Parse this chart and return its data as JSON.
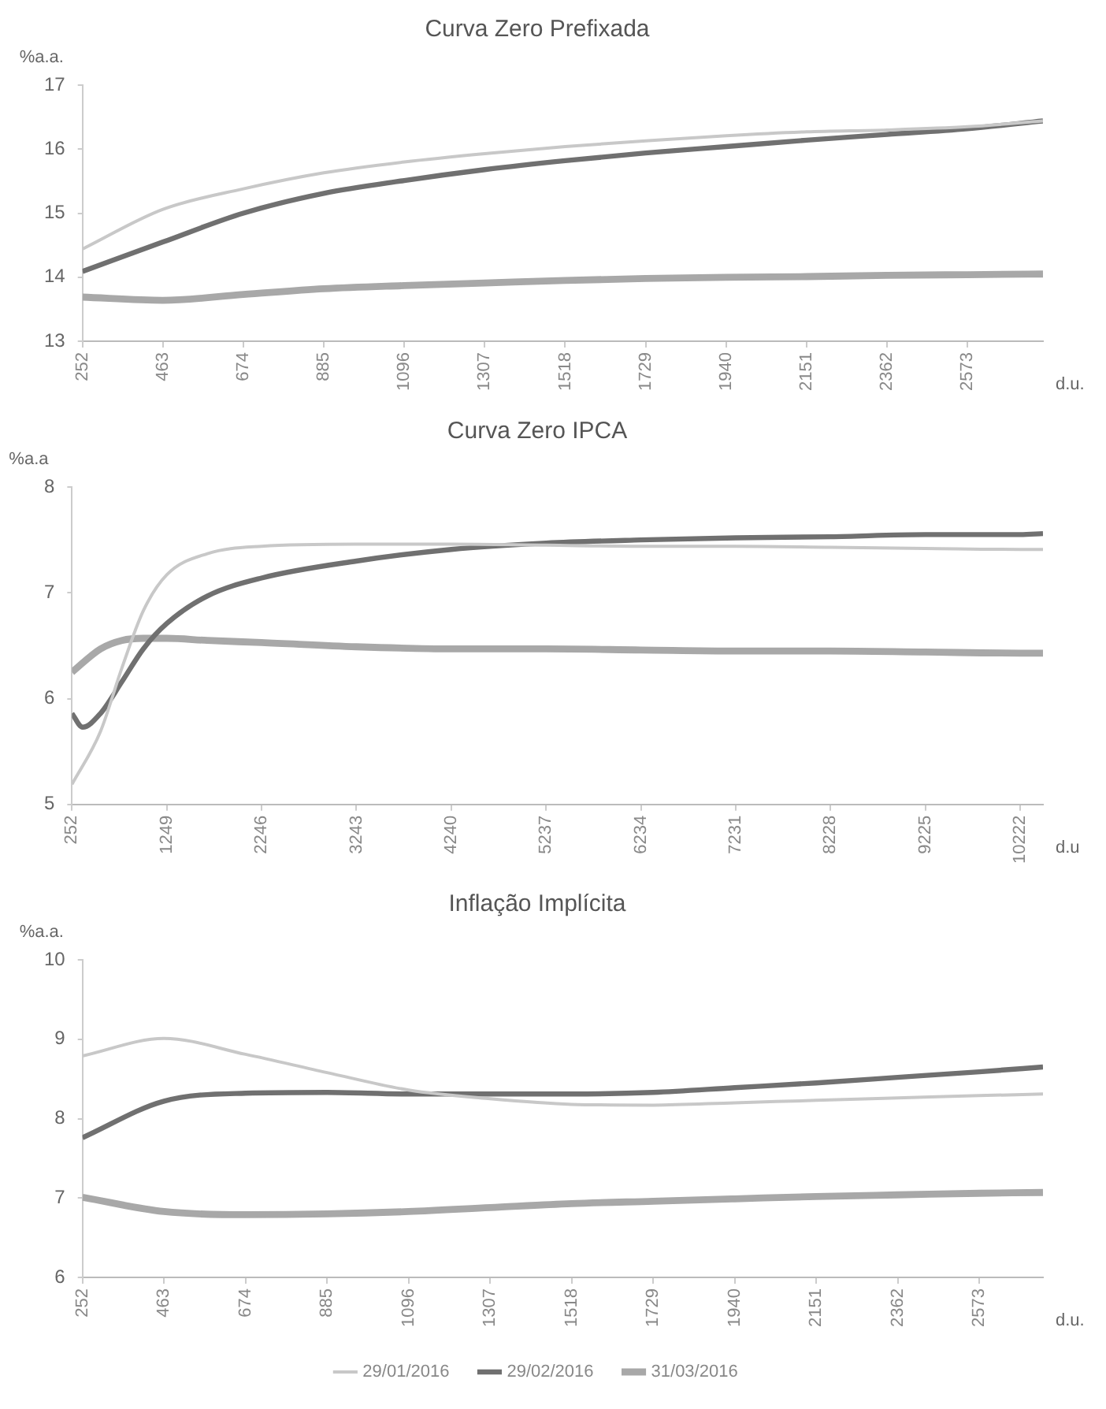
{
  "chart_data": [
    {
      "type": "line",
      "title": "Curva Zero Prefixada",
      "ylabel": "%a.a.",
      "xlabel": "d.u.",
      "xlim": [
        252,
        2771
      ],
      "xticks": [
        252,
        463,
        674,
        885,
        1096,
        1307,
        1518,
        1729,
        1940,
        2151,
        2362,
        2573
      ],
      "ylim": [
        13,
        17
      ],
      "yticks": [
        13,
        14,
        15,
        16,
        17
      ],
      "grid": false,
      "legend": false,
      "series": [
        {
          "color": "#c8c8c8",
          "x": [
            252,
            463,
            674,
            885,
            1096,
            1307,
            1518,
            1729,
            1940,
            2151,
            2362,
            2573,
            2771
          ],
          "values": [
            14.44,
            15.06,
            15.38,
            15.63,
            15.8,
            15.93,
            16.04,
            16.13,
            16.21,
            16.27,
            16.3,
            16.35,
            16.44
          ]
        },
        {
          "color": "#707070",
          "x": [
            252,
            463,
            674,
            885,
            1096,
            1307,
            1518,
            1729,
            1940,
            2151,
            2362,
            2573,
            2771
          ],
          "values": [
            14.09,
            14.55,
            15.0,
            15.31,
            15.51,
            15.68,
            15.82,
            15.94,
            16.04,
            16.14,
            16.23,
            16.32,
            16.44
          ]
        },
        {
          "color": "#a8a8a8",
          "x": [
            252,
            463,
            674,
            885,
            1096,
            1307,
            1518,
            1729,
            1940,
            2151,
            2362,
            2573,
            2771
          ],
          "values": [
            13.69,
            13.64,
            13.73,
            13.82,
            13.87,
            13.91,
            13.95,
            13.98,
            14.0,
            14.01,
            14.03,
            14.04,
            14.05
          ]
        }
      ]
    },
    {
      "type": "line",
      "title": "Curva Zero IPCA",
      "ylabel": "%a.a",
      "xlabel": "d.u",
      "xlim": [
        252,
        10462
      ],
      "xticks": [
        252,
        1249,
        2246,
        3243,
        4240,
        5237,
        6234,
        7231,
        8228,
        9225,
        10222
      ],
      "ylim": [
        5,
        8
      ],
      "yticks": [
        5,
        6,
        7,
        8
      ],
      "grid": false,
      "legend": false,
      "series": [
        {
          "color": "#c8c8c8",
          "x": [
            252,
            552,
            777,
            1002,
            1249,
            1676,
            2246,
            3243,
            4240,
            5237,
            6234,
            7231,
            8228,
            9225,
            10222,
            10462
          ],
          "values": [
            5.19,
            5.69,
            6.29,
            6.83,
            7.17,
            7.37,
            7.44,
            7.46,
            7.46,
            7.45,
            7.44,
            7.44,
            7.43,
            7.42,
            7.41,
            7.41
          ]
        },
        {
          "color": "#707070",
          "x": [
            252,
            364,
            552,
            777,
            1002,
            1249,
            1676,
            2246,
            3243,
            4240,
            5237,
            6234,
            7231,
            8228,
            9225,
            10222,
            10462
          ],
          "values": [
            5.86,
            5.73,
            5.86,
            6.16,
            6.47,
            6.71,
            6.97,
            7.14,
            7.3,
            7.41,
            7.47,
            7.5,
            7.52,
            7.53,
            7.55,
            7.55,
            7.56
          ]
        },
        {
          "color": "#a8a8a8",
          "x": [
            252,
            552,
            777,
            1002,
            1249,
            1676,
            2246,
            3243,
            4240,
            5237,
            6234,
            7231,
            8228,
            9225,
            10222,
            10462
          ],
          "values": [
            6.25,
            6.47,
            6.55,
            6.57,
            6.57,
            6.55,
            6.53,
            6.49,
            6.47,
            6.47,
            6.46,
            6.45,
            6.45,
            6.44,
            6.43,
            6.43
          ]
        }
      ]
    },
    {
      "type": "line",
      "title": "Inflação Implícita",
      "ylabel": "%a.a.",
      "xlabel": "d.u.",
      "xlim": [
        252,
        2738
      ],
      "xticks": [
        252,
        463,
        674,
        885,
        1096,
        1307,
        1518,
        1729,
        1940,
        2151,
        2362,
        2573
      ],
      "ylim": [
        6,
        10
      ],
      "yticks": [
        6,
        7,
        8,
        9,
        10
      ],
      "grid": false,
      "legend": "bottom",
      "series": [
        {
          "name": "29/01/2016",
          "color": "#c8c8c8",
          "x": [
            252,
            463,
            674,
            885,
            1096,
            1307,
            1518,
            1729,
            1940,
            2151,
            2362,
            2573,
            2738
          ],
          "values": [
            8.79,
            9.01,
            8.81,
            8.58,
            8.36,
            8.25,
            8.18,
            8.17,
            8.2,
            8.23,
            8.26,
            8.29,
            8.31
          ]
        },
        {
          "name": "29/02/2016",
          "color": "#707070",
          "x": [
            252,
            463,
            674,
            885,
            1096,
            1307,
            1518,
            1729,
            1940,
            2151,
            2362,
            2573,
            2738
          ],
          "values": [
            7.76,
            8.22,
            8.32,
            8.33,
            8.31,
            8.31,
            8.31,
            8.33,
            8.39,
            8.45,
            8.52,
            8.59,
            8.65
          ]
        },
        {
          "name": "31/03/2016",
          "color": "#a8a8a8",
          "x": [
            252,
            463,
            674,
            885,
            1096,
            1307,
            1518,
            1729,
            1940,
            2151,
            2362,
            2573,
            2738
          ],
          "values": [
            7.01,
            6.83,
            6.79,
            6.8,
            6.83,
            6.88,
            6.93,
            6.96,
            6.99,
            7.02,
            7.04,
            7.06,
            7.07
          ]
        }
      ]
    }
  ]
}
